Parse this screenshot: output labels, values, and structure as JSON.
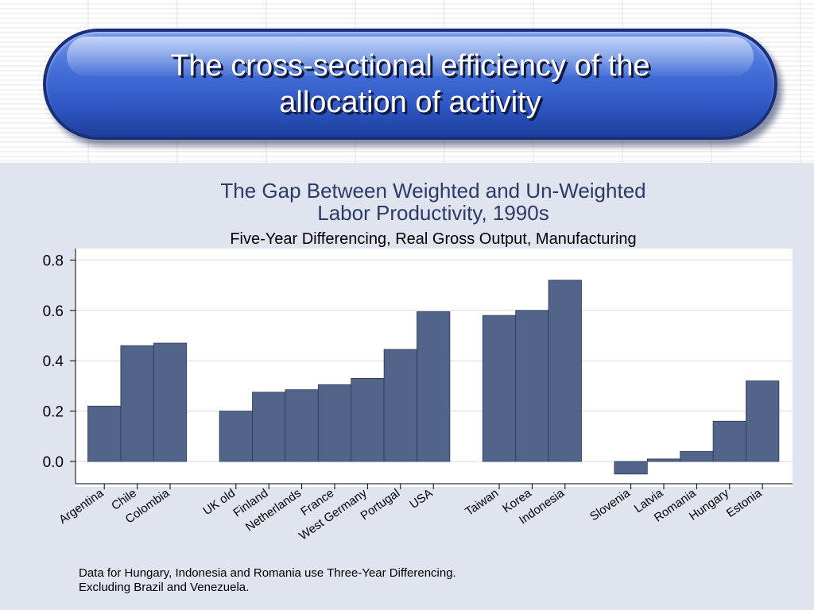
{
  "slide": {
    "title_line1": "The cross-sectional efficiency of the",
    "title_line2": "allocation of activity"
  },
  "notes": {
    "line1": "Data for Hungary, Indonesia and Romania use Three-Year Differencing.",
    "line2": "Excluding Brazil and Venezuela."
  },
  "colors": {
    "bar_fill": "#52648a",
    "title_text": "#2e3a66"
  },
  "chart_data": {
    "type": "bar",
    "title_line1": "The Gap Between Weighted and Un-Weighted",
    "title_line2": "Labor Productivity, 1990s",
    "subtitle": "Five-Year Differencing, Real Gross Output, Manufacturing",
    "ylim": [
      -0.05,
      0.8
    ],
    "yticks": [
      "0.0",
      "0.2",
      "0.4",
      "0.6",
      "0.8"
    ],
    "grid": true,
    "legend": "none",
    "groups": [
      {
        "categories": [
          "Argentina",
          "Chile",
          "Colombia"
        ],
        "values": [
          0.22,
          0.46,
          0.47
        ]
      },
      {
        "categories": [
          "UK old",
          "Finland",
          "Netherlands",
          "France",
          "West Germany",
          "Portugal",
          "USA"
        ],
        "values": [
          0.2,
          0.275,
          0.285,
          0.305,
          0.33,
          0.445,
          0.595
        ]
      },
      {
        "categories": [
          "Taiwan",
          "Korea",
          "Indonesia"
        ],
        "values": [
          0.58,
          0.6,
          0.72
        ]
      },
      {
        "categories": [
          "Slovenia",
          "Latvia",
          "Romania",
          "Hungary",
          "Estonia"
        ],
        "values": [
          -0.05,
          0.01,
          0.04,
          0.16,
          0.32
        ]
      }
    ]
  }
}
